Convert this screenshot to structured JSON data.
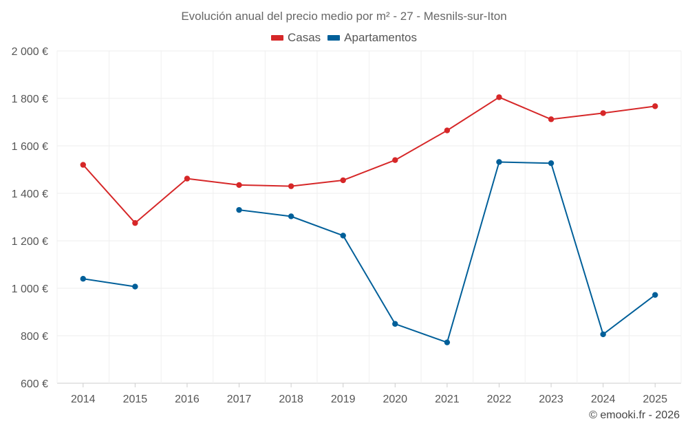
{
  "chart_data": {
    "type": "line",
    "title": "Evolución anual del precio medio por m² - 27 - Mesnils-sur-Iton",
    "categories": [
      "2014",
      "2015",
      "2016",
      "2017",
      "2018",
      "2019",
      "2020",
      "2021",
      "2022",
      "2023",
      "2024",
      "2025"
    ],
    "series": [
      {
        "name": "Casas",
        "color": "#d62728",
        "values": [
          1520,
          1275,
          1462,
          1435,
          1430,
          1455,
          1540,
          1665,
          1805,
          1712,
          1738,
          1767
        ]
      },
      {
        "name": "Apartamentos",
        "color": "#005f99",
        "values": [
          1040,
          1007,
          null,
          1330,
          1303,
          1222,
          850,
          772,
          1532,
          1527,
          806,
          972
        ]
      }
    ],
    "ylim": [
      600,
      2000
    ],
    "yticks": [
      600,
      800,
      1000,
      1200,
      1400,
      1600,
      1800,
      2000
    ],
    "ytick_labels": [
      "600 €",
      "800 €",
      "1 000 €",
      "1 200 €",
      "1 400 €",
      "1 600 €",
      "1 800 €",
      "2 000 €"
    ],
    "grid": true,
    "legend_position": "top-center"
  },
  "credit": "© emooki.fr - 2026"
}
